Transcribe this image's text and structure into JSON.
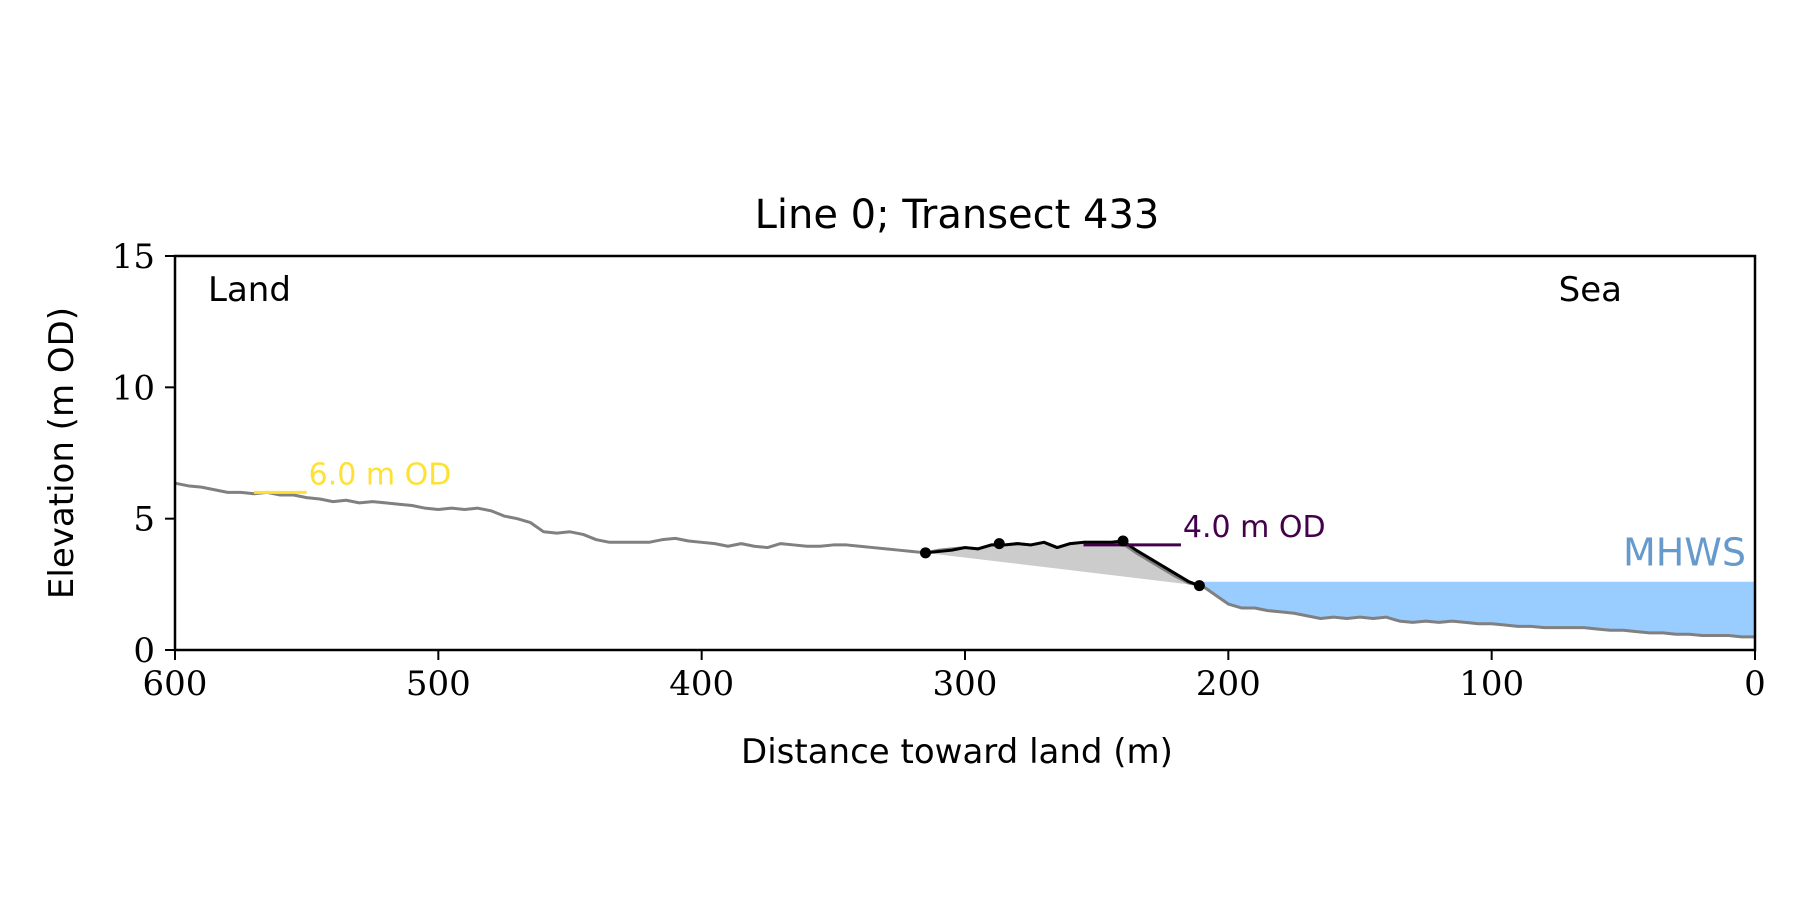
{
  "chart_data": {
    "type": "line",
    "title": "Line 0; Transect 433",
    "xlabel": "Distance toward land (m)",
    "ylabel": "Elevation (m OD)",
    "xlim": [
      600,
      0
    ],
    "ylim": [
      0,
      15
    ],
    "x_ticks": [
      600,
      500,
      400,
      300,
      200,
      100,
      0
    ],
    "y_ticks": [
      0,
      5,
      10,
      15
    ],
    "grid": false,
    "corner_labels": {
      "left": "Land",
      "right": "Sea"
    },
    "colors": {
      "profile": "#808080",
      "dune": "#000000",
      "dune_fill": "#cccccc",
      "water": "#99ccff",
      "mhws_label": "#6699cc",
      "od6": "#ffe135",
      "od4": "#44004a"
    },
    "profile": {
      "x": [
        600,
        595,
        590,
        585,
        580,
        575,
        570,
        565,
        560,
        555,
        550,
        545,
        540,
        535,
        530,
        525,
        520,
        515,
        510,
        505,
        500,
        495,
        490,
        485,
        480,
        475,
        470,
        465,
        460,
        455,
        450,
        445,
        440,
        435,
        430,
        425,
        420,
        415,
        410,
        405,
        400,
        395,
        390,
        385,
        380,
        375,
        370,
        365,
        360,
        355,
        350,
        345,
        340,
        335,
        330,
        325,
        320,
        315,
        310,
        305,
        300,
        295,
        290,
        285,
        280,
        275,
        270,
        265,
        260,
        255,
        250,
        245,
        240,
        235,
        230,
        225,
        220,
        215,
        210,
        205,
        200,
        195,
        190,
        185,
        180,
        175,
        170,
        165,
        160,
        155,
        150,
        145,
        140,
        135,
        130,
        125,
        120,
        115,
        110,
        105,
        100,
        95,
        90,
        85,
        80,
        75,
        70,
        65,
        60,
        55,
        50,
        45,
        40,
        35,
        30,
        25,
        20,
        15,
        10,
        5,
        0
      ],
      "y": [
        6.35,
        6.25,
        6.2,
        6.1,
        6.0,
        6.0,
        5.95,
        6.0,
        5.9,
        5.9,
        5.8,
        5.75,
        5.65,
        5.7,
        5.6,
        5.65,
        5.6,
        5.55,
        5.5,
        5.4,
        5.35,
        5.4,
        5.35,
        5.4,
        5.3,
        5.1,
        5.0,
        4.85,
        4.5,
        4.45,
        4.5,
        4.4,
        4.2,
        4.1,
        4.1,
        4.1,
        4.1,
        4.2,
        4.25,
        4.15,
        4.1,
        4.05,
        3.95,
        4.05,
        3.95,
        3.9,
        4.05,
        4.0,
        3.95,
        3.95,
        4.0,
        4.0,
        3.95,
        3.9,
        3.85,
        3.8,
        3.75,
        3.7,
        3.8,
        3.85,
        3.9,
        3.85,
        4.0,
        4.0,
        4.05,
        4.0,
        4.1,
        3.9,
        4.05,
        4.1,
        4.1,
        4.1,
        4.05,
        3.7,
        3.4,
        3.1,
        2.8,
        2.55,
        2.45,
        2.1,
        1.75,
        1.6,
        1.6,
        1.5,
        1.45,
        1.4,
        1.3,
        1.2,
        1.25,
        1.2,
        1.25,
        1.2,
        1.25,
        1.1,
        1.05,
        1.1,
        1.05,
        1.1,
        1.05,
        1.0,
        1.0,
        0.95,
        0.9,
        0.9,
        0.85,
        0.85,
        0.85,
        0.85,
        0.8,
        0.75,
        0.75,
        0.7,
        0.65,
        0.65,
        0.6,
        0.6,
        0.55,
        0.55,
        0.55,
        0.5,
        0.5
      ]
    },
    "dune_crest_line": {
      "x": [
        315,
        305,
        300,
        295,
        290,
        285,
        280,
        275,
        270,
        265,
        260,
        255,
        250,
        245,
        240,
        235,
        230,
        225,
        220,
        215,
        211
      ],
      "y": [
        3.7,
        3.8,
        3.9,
        3.85,
        4.0,
        4.0,
        4.05,
        4.0,
        4.1,
        3.9,
        4.05,
        4.1,
        4.1,
        4.1,
        4.15,
        3.8,
        3.5,
        3.2,
        2.9,
        2.6,
        2.45
      ]
    },
    "dune_points": {
      "x": [
        315,
        287,
        240,
        211
      ],
      "y": [
        3.7,
        4.05,
        4.15,
        2.45
      ]
    },
    "dune_base_line": {
      "x": [
        315,
        211
      ],
      "y": [
        3.7,
        2.45
      ]
    },
    "mhws": {
      "label": "MHWS",
      "level": 2.6,
      "x_from": 211,
      "x_to": 0
    },
    "od_markers": [
      {
        "label": "6.0 m OD",
        "level": 6.0,
        "x_from": 570,
        "x_to": 550
      },
      {
        "label": "4.0 m OD",
        "level": 4.0,
        "x_from": 255,
        "x_to": 218
      }
    ]
  }
}
